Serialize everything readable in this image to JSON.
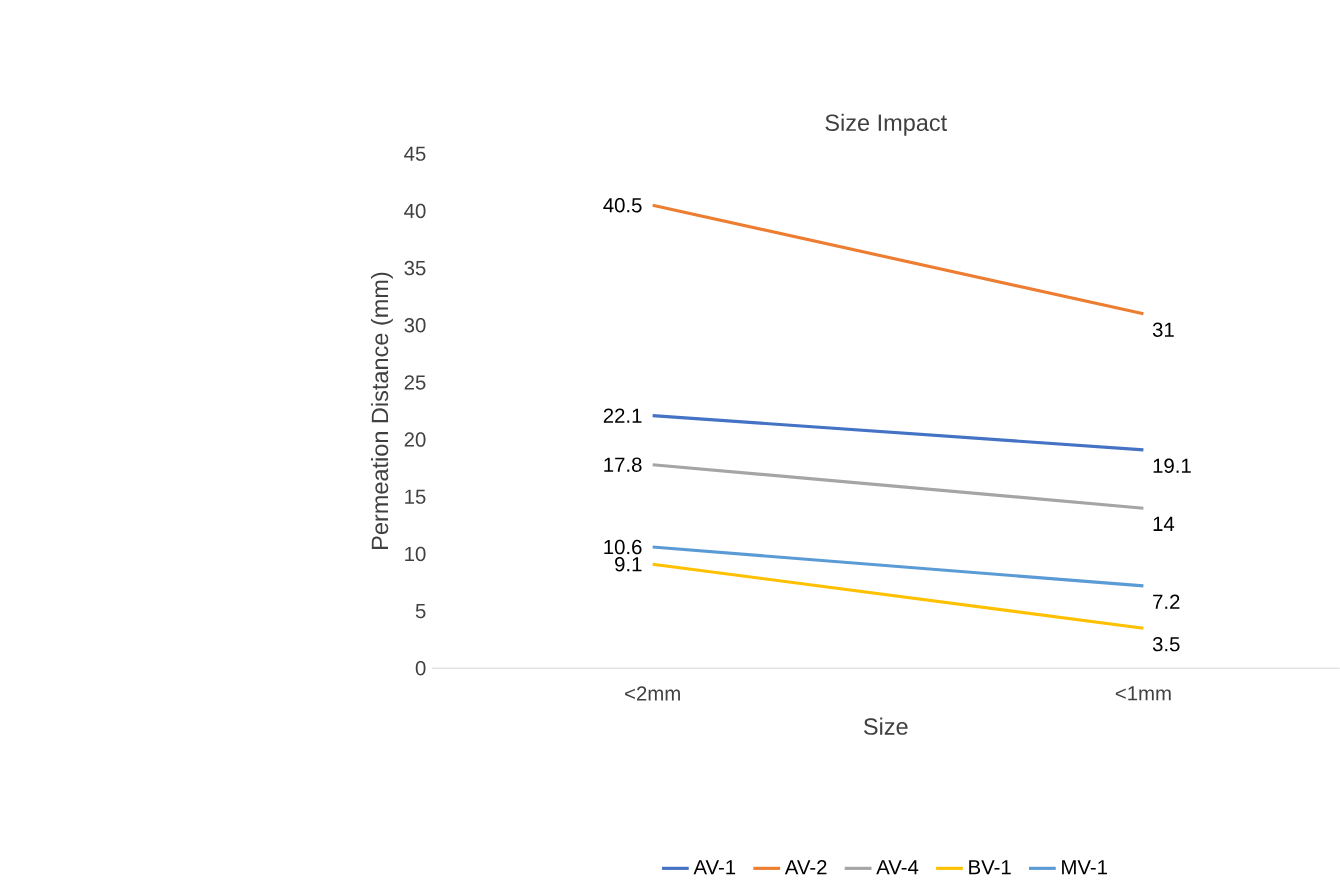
{
  "chart_data": {
    "type": "line",
    "title": "Size Impact",
    "xlabel": "Size",
    "ylabel": "Permeation Distance (mm)",
    "categories": [
      "<2mm",
      "<1mm"
    ],
    "series": [
      {
        "name": "AV-1",
        "color": "#4472c4",
        "values": [
          22.1,
          19.1
        ]
      },
      {
        "name": "AV-2",
        "color": "#ed7d31",
        "values": [
          40.5,
          31
        ]
      },
      {
        "name": "AV-4",
        "color": "#a5a5a5",
        "values": [
          17.8,
          14
        ]
      },
      {
        "name": "BV-1",
        "color": "#ffc000",
        "values": [
          9.1,
          3.5
        ]
      },
      {
        "name": "MV-1",
        "color": "#5b9bd5",
        "values": [
          10.6,
          7.2
        ]
      }
    ],
    "ylim": [
      0,
      45
    ],
    "yticks": [
      0,
      5,
      10,
      15,
      20,
      25,
      30,
      35,
      40,
      45
    ],
    "data_labels": true,
    "legend": "bottom",
    "grid": false
  }
}
